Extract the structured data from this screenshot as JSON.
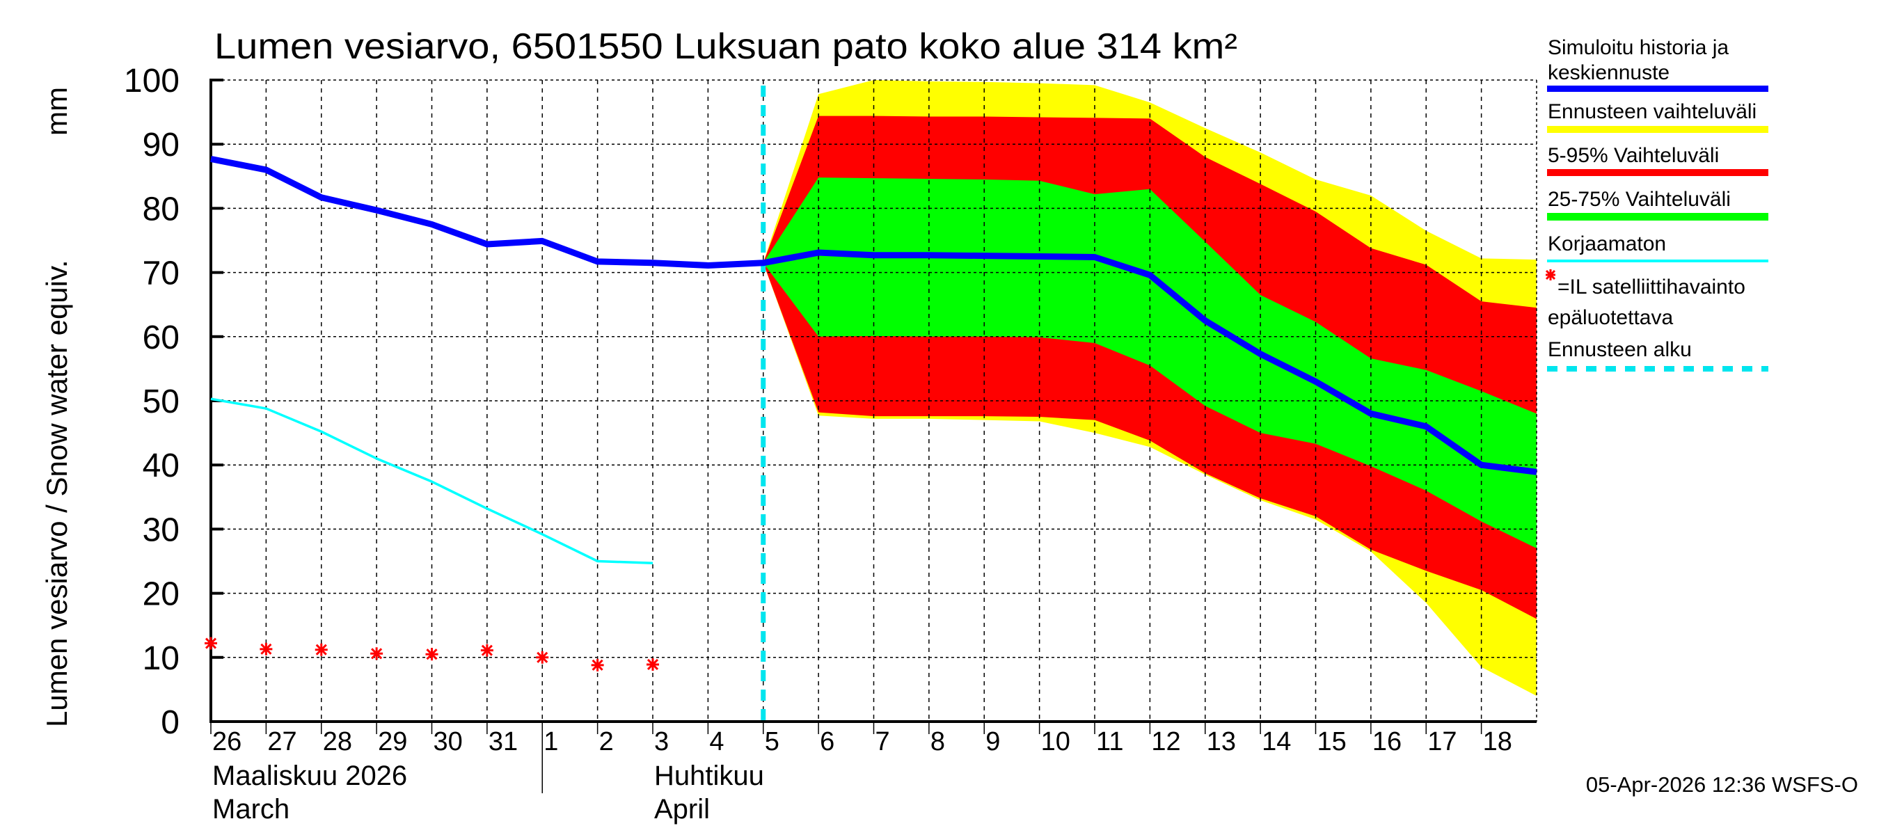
{
  "chart_data": {
    "type": "area",
    "title": "Lumen vesiarvo, 6501550 Luksuan pato koko alue 314 km²",
    "ylabel": "Lumen vesiarvo / Snow water equiv.",
    "yunit": "mm",
    "ylim": [
      0,
      100
    ],
    "yticks": [
      0,
      10,
      20,
      30,
      40,
      50,
      60,
      70,
      80,
      90,
      100
    ],
    "grid": true,
    "legend_placement": "right",
    "x_dates": [
      "2026-03-26",
      "2026-03-27",
      "2026-03-28",
      "2026-03-29",
      "2026-03-30",
      "2026-03-31",
      "2026-04-01",
      "2026-04-02",
      "2026-04-03",
      "2026-04-04",
      "2026-04-05",
      "2026-04-06",
      "2026-04-07",
      "2026-04-08",
      "2026-04-09",
      "2026-04-10",
      "2026-04-11",
      "2026-04-12",
      "2026-04-13",
      "2026-04-14",
      "2026-04-15",
      "2026-04-16",
      "2026-04-17",
      "2026-04-18",
      "2026-04-19"
    ],
    "xtick_labels": [
      "26",
      "27",
      "28",
      "29",
      "30",
      "31",
      "1",
      "2",
      "3",
      "4",
      "5",
      "6",
      "7",
      "8",
      "9",
      "10",
      "11",
      "12",
      "13",
      "14",
      "15",
      "16",
      "17",
      "18"
    ],
    "month_labels": [
      {
        "line1": "Maaliskuu 2026",
        "line2": "March"
      },
      {
        "line1": "Huhtikuu",
        "line2": "April"
      }
    ],
    "forecast_start": "2026-04-05",
    "series": [
      {
        "name": "Simuloitu historia ja keskiennuste",
        "color": "#0000ff",
        "kind": "line",
        "values": [
          87.7,
          86.0,
          81.7,
          79.7,
          77.5,
          74.4,
          74.9,
          71.7,
          71.5,
          71.1,
          71.5,
          73.1,
          72.7,
          72.7,
          72.6,
          72.5,
          72.4,
          69.6,
          62.5,
          57.3,
          53.0,
          48.0,
          46.0,
          40.0,
          38.9
        ]
      },
      {
        "name": "Korjaamaton",
        "color": "#00ffff",
        "kind": "line",
        "values": [
          50.3,
          48.8,
          45.2,
          41.0,
          37.4,
          33.2,
          29.2,
          25.0,
          24.7
        ]
      },
      {
        "name": "=IL satelliittihavainto epäluotettava",
        "color": "#ff0000",
        "kind": "scatter",
        "values": [
          12.2,
          11.3,
          11.2,
          10.6,
          10.5,
          11.1,
          10.0,
          8.8,
          8.9
        ]
      }
    ],
    "bands": [
      {
        "name": "Ennusteen vaihteluväli",
        "color": "#ffff00",
        "start_index": 10,
        "upper": [
          71.5,
          97.8,
          100,
          99.8,
          99.7,
          99.5,
          99.2,
          96.5,
          92.5,
          88.7,
          84.5,
          82.0,
          76.5,
          72.2,
          72.0
        ],
        "lower": [
          71.5,
          47.7,
          47.2,
          47.2,
          47.0,
          46.8,
          45.0,
          42.8,
          38.5,
          34.5,
          31.5,
          26.5,
          18.5,
          8.5,
          4.0
        ]
      },
      {
        "name": "5-95% Vaihteluväli",
        "color": "#ff0000",
        "start_index": 10,
        "upper": [
          71.5,
          94.4,
          94.4,
          94.3,
          94.3,
          94.2,
          94.1,
          94.0,
          88.0,
          83.8,
          79.5,
          73.8,
          71.2,
          65.5,
          64.5
        ],
        "lower": [
          71.5,
          48.2,
          47.6,
          47.6,
          47.6,
          47.5,
          47.0,
          43.8,
          38.7,
          34.8,
          32.0,
          26.8,
          23.5,
          20.5,
          16.0
        ]
      },
      {
        "name": "25-75% Vaihteluväli",
        "color": "#00ff00",
        "start_index": 10,
        "upper": [
          71.5,
          84.8,
          84.7,
          84.6,
          84.5,
          84.3,
          82.2,
          83.0,
          74.8,
          66.5,
          62.3,
          56.6,
          54.8,
          51.5,
          48.0
        ],
        "lower": [
          71.5,
          60.0,
          60.1,
          60.0,
          60.0,
          59.9,
          59.0,
          55.5,
          49.2,
          45.0,
          43.3,
          39.8,
          36.0,
          31.2,
          27.0
        ]
      }
    ]
  },
  "legend": {
    "sim_line1": "Simuloitu historia ja",
    "sim_line2": "keskiennuste",
    "range": "Ennusteen vaihteluväli",
    "p5_95": "5-95% Vaihteluväli",
    "p25_75": "25-75% Vaihteluväli",
    "uncorrected": "Korjaamaton",
    "sat_line1": "=IL satelliittihavainto",
    "sat_line2": "epäluotettava",
    "forecast_start": "Ennusteen alku",
    "forecast_start_color": "#00e5ee"
  },
  "footer": "05-Apr-2026 12:36 WSFS-O"
}
